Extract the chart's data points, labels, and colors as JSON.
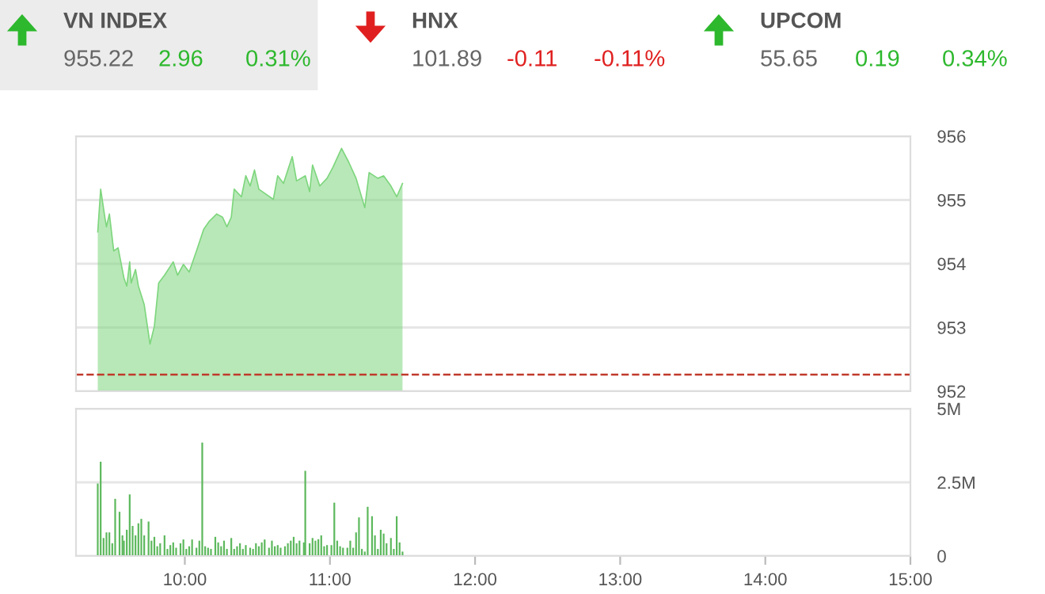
{
  "chart_data": [
    {
      "type": "other",
      "categories": [
        "VN INDEX",
        "HNX",
        "UPCOM"
      ],
      "colors": [
        "#2db82d",
        "#e02020",
        "#2db82d"
      ],
      "annotations": [
        "955.22",
        "2.96",
        "0.31%",
        "101.89",
        "-0.11",
        "-0.11%",
        "55.65",
        "0.19",
        "0.34%"
      ]
    },
    {
      "type": "area",
      "series": [
        {
          "color": "#7ed67e",
          "x": [
            9.4,
            9.42,
            9.45,
            9.46,
            9.48,
            9.51,
            9.54,
            9.58,
            9.6,
            9.62,
            9.63,
            9.66,
            9.68,
            9.72,
            9.76,
            9.79,
            9.82,
            9.86,
            9.92,
            9.95,
            9.99,
            10.03,
            10.08,
            10.13,
            10.17,
            10.22,
            10.26,
            10.29,
            10.32,
            10.34,
            10.39,
            10.42,
            10.45,
            10.48,
            10.51,
            10.61,
            10.64,
            10.68,
            10.74,
            10.77,
            10.83,
            10.86,
            10.88,
            10.93,
            10.98,
            11.02,
            11.08,
            11.13,
            11.18,
            11.24,
            11.27,
            11.33,
            11.37,
            11.42,
            11.46,
            11.5
          ],
          "values": [
            954.5,
            955.17,
            954.71,
            954.58,
            954.78,
            954.2,
            954.25,
            953.78,
            953.65,
            954.03,
            953.7,
            953.91,
            953.65,
            953.36,
            952.74,
            953.02,
            953.7,
            953.82,
            954.03,
            953.82,
            953.99,
            953.87,
            954.2,
            954.54,
            954.67,
            954.78,
            954.73,
            954.58,
            954.73,
            955.17,
            955.05,
            955.38,
            955.22,
            955.47,
            955.17,
            955.01,
            955.38,
            955.26,
            955.68,
            955.3,
            955.38,
            955.13,
            955.55,
            955.22,
            955.34,
            955.51,
            955.81,
            955.59,
            955.34,
            954.88,
            955.43,
            955.34,
            955.38,
            955.22,
            955.05,
            955.26
          ]
        }
      ],
      "xlim": [
        9.25,
        15
      ],
      "ylim": [
        952,
        956
      ],
      "yticks": [
        952,
        953,
        954,
        955,
        956
      ],
      "grid": "y",
      "tick_labels": "y",
      "ref_lines": [
        {
          "axis": "y",
          "value": 952.26,
          "color": "#c0392b",
          "line_style": "dashed"
        }
      ]
    },
    {
      "type": "bar",
      "series": [
        {
          "color": "#5cb85c",
          "x": [
            9.4,
            9.42,
            9.44,
            9.46,
            9.48,
            9.5,
            9.52,
            9.55,
            9.57,
            9.58,
            9.6,
            9.62,
            9.64,
            9.66,
            9.68,
            9.7,
            9.72,
            9.75,
            9.77,
            9.79,
            9.81,
            9.83,
            9.86,
            9.88,
            9.9,
            9.92,
            9.94,
            9.97,
            9.99,
            10.01,
            10.03,
            10.05,
            10.08,
            10.1,
            10.12,
            10.14,
            10.16,
            10.18,
            10.21,
            10.23,
            10.25,
            10.27,
            10.29,
            10.32,
            10.34,
            10.36,
            10.38,
            10.4,
            10.42,
            10.45,
            10.47,
            10.49,
            10.51,
            10.53,
            10.55,
            10.58,
            10.6,
            10.62,
            10.64,
            10.66,
            10.69,
            10.71,
            10.73,
            10.75,
            10.77,
            10.79,
            10.82,
            10.83,
            10.86,
            10.88,
            10.9,
            10.92,
            10.94,
            10.96,
            10.98,
            11.01,
            11.03,
            11.05,
            11.07,
            11.09,
            11.12,
            11.14,
            11.16,
            11.18,
            11.2,
            11.22,
            11.24,
            11.26,
            11.29,
            11.31,
            11.33,
            11.35,
            11.37,
            11.39,
            11.42,
            11.44,
            11.46,
            11.48,
            11.5
          ],
          "values": [
            2.46,
            3.2,
            0.61,
            0.8,
            0.8,
            0.43,
            1.94,
            1.5,
            0.7,
            0.52,
            0.89,
            2.09,
            1.02,
            0.7,
            1.11,
            1.26,
            0.7,
            1.17,
            0.52,
            0.65,
            0.33,
            0.43,
            0.7,
            0.24,
            0.37,
            0.46,
            0.28,
            0.43,
            0.56,
            0.24,
            0.33,
            0.56,
            0.28,
            0.52,
            3.85,
            0.33,
            0.28,
            0.24,
            0.65,
            0.46,
            0.33,
            0.52,
            0.24,
            0.61,
            0.24,
            0.33,
            0.43,
            0.24,
            0.37,
            0.28,
            0.24,
            0.43,
            0.33,
            0.46,
            0.56,
            0.28,
            0.52,
            0.33,
            0.37,
            0.28,
            0.33,
            0.43,
            0.52,
            0.65,
            0.43,
            0.52,
            0.46,
            2.89,
            0.43,
            0.61,
            0.52,
            0.57,
            0.7,
            0.33,
            0.37,
            0.37,
            1.81,
            0.52,
            0.33,
            0.28,
            0.28,
            0.52,
            0.28,
            0.8,
            1.31,
            0.24,
            0.15,
            1.67,
            1.35,
            0.7,
            0.24,
            0.89,
            0.76,
            0.43,
            0.61,
            0.24,
            1.35,
            0.46,
            0.15
          ]
        }
      ],
      "xlim": [
        9.25,
        15
      ],
      "xticks": [
        {
          "value": 10,
          "label": "10:00"
        },
        {
          "value": 11,
          "label": "11:00"
        },
        {
          "value": 12,
          "label": "12:00"
        },
        {
          "value": 13,
          "label": "13:00"
        },
        {
          "value": 14,
          "label": "14:00"
        },
        {
          "value": 15,
          "label": "15:00"
        }
      ],
      "ylim": [
        0,
        5
      ],
      "yticks": [
        0,
        {
          "value": 2.5,
          "label": "2.5M"
        },
        {
          "value": 5,
          "label": "5M"
        }
      ],
      "grid": "y"
    }
  ]
}
